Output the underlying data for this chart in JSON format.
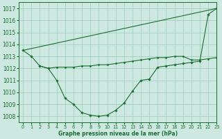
{
  "background_color": "#cce8e0",
  "grid_color": "#99ccbb",
  "line_color": "#1a6e2e",
  "xlabel": "Graphe pression niveau de la mer (hPa)",
  "xlim": [
    -0.5,
    23
  ],
  "ylim": [
    1007.5,
    1017.5
  ],
  "yticks": [
    1008,
    1009,
    1010,
    1011,
    1012,
    1013,
    1014,
    1015,
    1016,
    1017
  ],
  "xticks": [
    0,
    1,
    2,
    3,
    4,
    5,
    6,
    7,
    8,
    9,
    10,
    11,
    12,
    13,
    14,
    15,
    16,
    17,
    18,
    19,
    20,
    21,
    22,
    23
  ],
  "series_vshape": {
    "x": [
      0,
      1,
      2,
      3,
      4,
      5,
      6,
      7,
      8,
      9,
      10,
      11,
      12,
      13,
      14,
      15,
      16,
      17,
      18,
      19,
      20,
      21,
      22,
      23
    ],
    "y": [
      1013.5,
      1013.0,
      1012.2,
      1012.0,
      1011.0,
      1009.5,
      1009.0,
      1008.3,
      1008.1,
      1008.0,
      1008.1,
      1008.5,
      1009.1,
      1010.1,
      1011.0,
      1011.1,
      1012.1,
      1012.2,
      1012.3,
      1012.4,
      1012.5,
      1012.6,
      1016.5,
      1017.0
    ]
  },
  "series_straight": {
    "x": [
      0,
      23
    ],
    "y": [
      1013.5,
      1017.0
    ]
  },
  "series_flat": {
    "x": [
      2,
      3,
      4,
      5,
      6,
      7,
      8,
      9,
      10,
      11,
      12,
      13,
      14,
      15,
      16,
      17,
      18,
      19,
      20,
      21,
      22,
      23
    ],
    "y": [
      1012.2,
      1012.0,
      1012.1,
      1012.1,
      1012.1,
      1012.2,
      1012.2,
      1012.3,
      1012.3,
      1012.4,
      1012.5,
      1012.6,
      1012.7,
      1012.8,
      1012.9,
      1012.9,
      1013.0,
      1013.0,
      1012.7,
      1012.7,
      1012.8,
      1012.9
    ]
  }
}
